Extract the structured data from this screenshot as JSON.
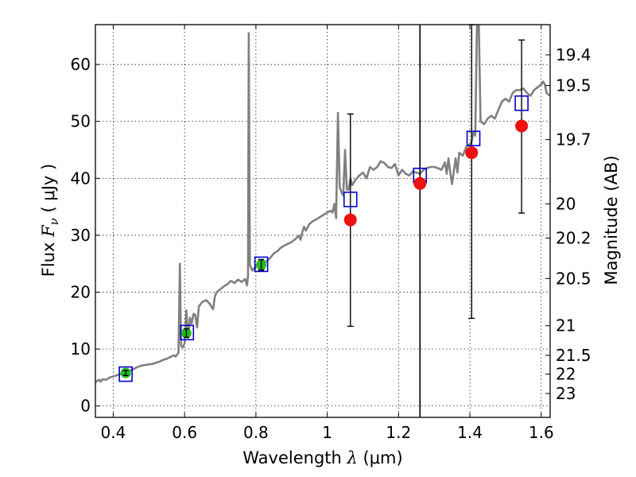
{
  "chart_data": {
    "type": "scatter",
    "title": "",
    "xlabel": {
      "prefix": "Wavelength  ",
      "symbol": "λ",
      "units": " (μm)"
    },
    "ylabel": {
      "prefix": "Flux  ",
      "symbol": "F",
      "subscript": "ν",
      "units": "  ( μJy )"
    },
    "y2label": "Magnitude (AB)",
    "xlim": [
      0.35,
      1.625
    ],
    "ylim": [
      -2,
      67
    ],
    "grid": true,
    "x_ticks": [
      0.4,
      0.6,
      0.8,
      1.0,
      1.2,
      1.4,
      1.6
    ],
    "x_tick_labels": [
      "0.4",
      "0.6",
      "0.8",
      "1",
      "1.2",
      "1.4",
      "1.6"
    ],
    "y_ticks": [
      0,
      10,
      20,
      30,
      40,
      50,
      60
    ],
    "y_tick_labels": [
      "0",
      "10",
      "20",
      "30",
      "40",
      "50",
      "60"
    ],
    "magnitude_ticks": [
      {
        "label": "19.4",
        "flux": 61.7
      },
      {
        "label": "19.5",
        "flux": 56.3
      },
      {
        "label": "19.7",
        "flux": 46.8
      },
      {
        "label": "20",
        "flux": 35.5
      },
      {
        "label": "20.2",
        "flux": 29.5
      },
      {
        "label": "20.5",
        "flux": 22.4
      },
      {
        "label": "21",
        "flux": 14.1
      },
      {
        "label": "21.5",
        "flux": 8.9
      },
      {
        "label": "22",
        "flux": 5.6
      },
      {
        "label": "23",
        "flux": 2.2
      }
    ],
    "vertical_line_x": 1.26,
    "template_spectrum": {
      "color": "#808080",
      "points": [
        [
          0.35,
          4.2
        ],
        [
          0.36,
          4.6
        ],
        [
          0.365,
          4.3
        ],
        [
          0.37,
          4.7
        ],
        [
          0.38,
          4.6
        ],
        [
          0.39,
          5.0
        ],
        [
          0.4,
          5.2
        ],
        [
          0.41,
          5.4
        ],
        [
          0.42,
          5.6
        ],
        [
          0.43,
          5.8
        ],
        [
          0.44,
          6.0
        ],
        [
          0.45,
          6.3
        ],
        [
          0.46,
          6.6
        ],
        [
          0.47,
          6.9
        ],
        [
          0.48,
          7.1
        ],
        [
          0.49,
          7.2
        ],
        [
          0.5,
          7.3
        ],
        [
          0.51,
          7.4
        ],
        [
          0.52,
          7.6
        ],
        [
          0.53,
          7.8
        ],
        [
          0.54,
          8.1
        ],
        [
          0.55,
          8.3
        ],
        [
          0.56,
          8.6
        ],
        [
          0.57,
          8.9
        ],
        [
          0.575,
          8.7
        ],
        [
          0.58,
          9.1
        ],
        [
          0.583,
          9.4
        ],
        [
          0.587,
          25.0
        ],
        [
          0.59,
          10.6
        ],
        [
          0.595,
          10.3
        ],
        [
          0.6,
          11.0
        ],
        [
          0.605,
          16.8
        ],
        [
          0.61,
          12.0
        ],
        [
          0.615,
          15.5
        ],
        [
          0.62,
          14.5
        ],
        [
          0.625,
          16.2
        ],
        [
          0.63,
          16.0
        ],
        [
          0.635,
          13.8
        ],
        [
          0.64,
          17.5
        ],
        [
          0.65,
          18.3
        ],
        [
          0.66,
          18.6
        ],
        [
          0.67,
          18.0
        ],
        [
          0.68,
          17.0
        ],
        [
          0.685,
          19.2
        ],
        [
          0.69,
          20.0
        ],
        [
          0.7,
          20.5
        ],
        [
          0.71,
          21.0
        ],
        [
          0.72,
          21.4
        ],
        [
          0.73,
          22.0
        ],
        [
          0.74,
          21.6
        ],
        [
          0.75,
          22.2
        ],
        [
          0.76,
          21.8
        ],
        [
          0.77,
          22.3
        ],
        [
          0.775,
          21.2
        ],
        [
          0.778,
          22.9
        ],
        [
          0.78,
          65.5
        ],
        [
          0.783,
          24.8
        ],
        [
          0.79,
          23.8
        ],
        [
          0.8,
          24.5
        ],
        [
          0.81,
          24.8
        ],
        [
          0.82,
          25.2
        ],
        [
          0.83,
          25.4
        ],
        [
          0.84,
          26.0
        ],
        [
          0.85,
          26.8
        ],
        [
          0.86,
          27.2
        ],
        [
          0.87,
          27.8
        ],
        [
          0.88,
          28.2
        ],
        [
          0.89,
          28.5
        ],
        [
          0.9,
          28.8
        ],
        [
          0.91,
          29.3
        ],
        [
          0.92,
          29.9
        ],
        [
          0.925,
          29.2
        ],
        [
          0.93,
          30.5
        ],
        [
          0.935,
          31.5
        ],
        [
          0.94,
          30.8
        ],
        [
          0.95,
          32.0
        ],
        [
          0.96,
          32.5
        ],
        [
          0.97,
          32.8
        ],
        [
          0.98,
          33.2
        ],
        [
          0.99,
          33.6
        ],
        [
          1.0,
          34.0
        ],
        [
          1.01,
          34.3
        ],
        [
          1.015,
          34.0
        ],
        [
          1.02,
          35.5
        ],
        [
          1.025,
          33.0
        ],
        [
          1.03,
          51.5
        ],
        [
          1.035,
          38.5
        ],
        [
          1.04,
          37.5
        ],
        [
          1.045,
          37.0
        ],
        [
          1.05,
          45.0
        ],
        [
          1.055,
          38.0
        ],
        [
          1.06,
          38.0
        ],
        [
          1.065,
          40.0
        ],
        [
          1.07,
          38.8
        ],
        [
          1.08,
          39.8
        ],
        [
          1.09,
          40.5
        ],
        [
          1.1,
          41.0
        ],
        [
          1.11,
          40.0
        ],
        [
          1.12,
          42.0
        ],
        [
          1.13,
          41.5
        ],
        [
          1.14,
          42.0
        ],
        [
          1.15,
          43.0
        ],
        [
          1.16,
          42.7
        ],
        [
          1.17,
          42.0
        ],
        [
          1.18,
          41.8
        ],
        [
          1.19,
          42.5
        ],
        [
          1.2,
          40.5
        ],
        [
          1.21,
          41.5
        ],
        [
          1.22,
          40.8
        ],
        [
          1.23,
          40.5
        ],
        [
          1.24,
          41.2
        ],
        [
          1.25,
          41.0
        ],
        [
          1.26,
          40.8
        ],
        [
          1.27,
          41.5
        ],
        [
          1.28,
          41.8
        ],
        [
          1.29,
          42.0
        ],
        [
          1.3,
          42.0
        ],
        [
          1.31,
          41.8
        ],
        [
          1.32,
          41.5
        ],
        [
          1.33,
          42.8
        ],
        [
          1.335,
          40.8
        ],
        [
          1.34,
          43.5
        ],
        [
          1.345,
          41.0
        ],
        [
          1.35,
          39.0
        ],
        [
          1.36,
          43.5
        ],
        [
          1.365,
          41.0
        ],
        [
          1.37,
          44.5
        ],
        [
          1.38,
          44.0
        ],
        [
          1.39,
          45.5
        ],
        [
          1.4,
          46.0
        ],
        [
          1.405,
          46.5
        ],
        [
          1.41,
          48.0
        ],
        [
          1.415,
          47.5
        ],
        [
          1.42,
          67.0
        ],
        [
          1.425,
          67.0
        ],
        [
          1.43,
          50.0
        ],
        [
          1.44,
          49.5
        ],
        [
          1.45,
          50.5
        ],
        [
          1.46,
          51.0
        ],
        [
          1.47,
          50.5
        ],
        [
          1.48,
          52.0
        ],
        [
          1.49,
          53.5
        ],
        [
          1.5,
          54.0
        ],
        [
          1.51,
          53.5
        ],
        [
          1.52,
          55.0
        ],
        [
          1.53,
          55.5
        ],
        [
          1.54,
          55.5
        ],
        [
          1.55,
          55.8
        ],
        [
          1.56,
          55.0
        ],
        [
          1.57,
          54.5
        ],
        [
          1.58,
          55.5
        ],
        [
          1.59,
          56.0
        ],
        [
          1.6,
          56.5
        ],
        [
          1.605,
          57.0
        ],
        [
          1.61,
          56.5
        ],
        [
          1.615,
          55.0
        ],
        [
          1.625,
          54.5
        ]
      ]
    },
    "observed_points": [
      {
        "x": 0.435,
        "y": 5.8,
        "color": "#22bb22",
        "yerr": 0.3
      },
      {
        "x": 0.605,
        "y": 12.8,
        "color": "#22bb22",
        "yerr": 0.6
      },
      {
        "x": 0.815,
        "y": 24.8,
        "color": "#22bb22",
        "yerr": 0.8
      },
      {
        "x": 1.065,
        "y": 32.7,
        "color": "#ee1111",
        "yerr_low": 18.7,
        "yerr_high": 18.6
      },
      {
        "x": 1.26,
        "y": 39.1,
        "color": "#ee1111"
      },
      {
        "x": 1.405,
        "y": 44.5,
        "color": "#ee1111",
        "yerr_low": 29.1,
        "yerr_high": 22.5
      },
      {
        "x": 1.545,
        "y": 49.2,
        "color": "#ee1111",
        "yerr_low": 15.3,
        "yerr_high": 15.1
      }
    ],
    "model_points": [
      {
        "x": 0.435,
        "y": 5.6
      },
      {
        "x": 0.607,
        "y": 12.9
      },
      {
        "x": 0.815,
        "y": 24.9
      },
      {
        "x": 1.065,
        "y": 36.3
      },
      {
        "x": 1.26,
        "y": 40.5
      },
      {
        "x": 1.41,
        "y": 47.0
      },
      {
        "x": 1.545,
        "y": 53.2
      }
    ],
    "model_color": "#0000cc"
  }
}
